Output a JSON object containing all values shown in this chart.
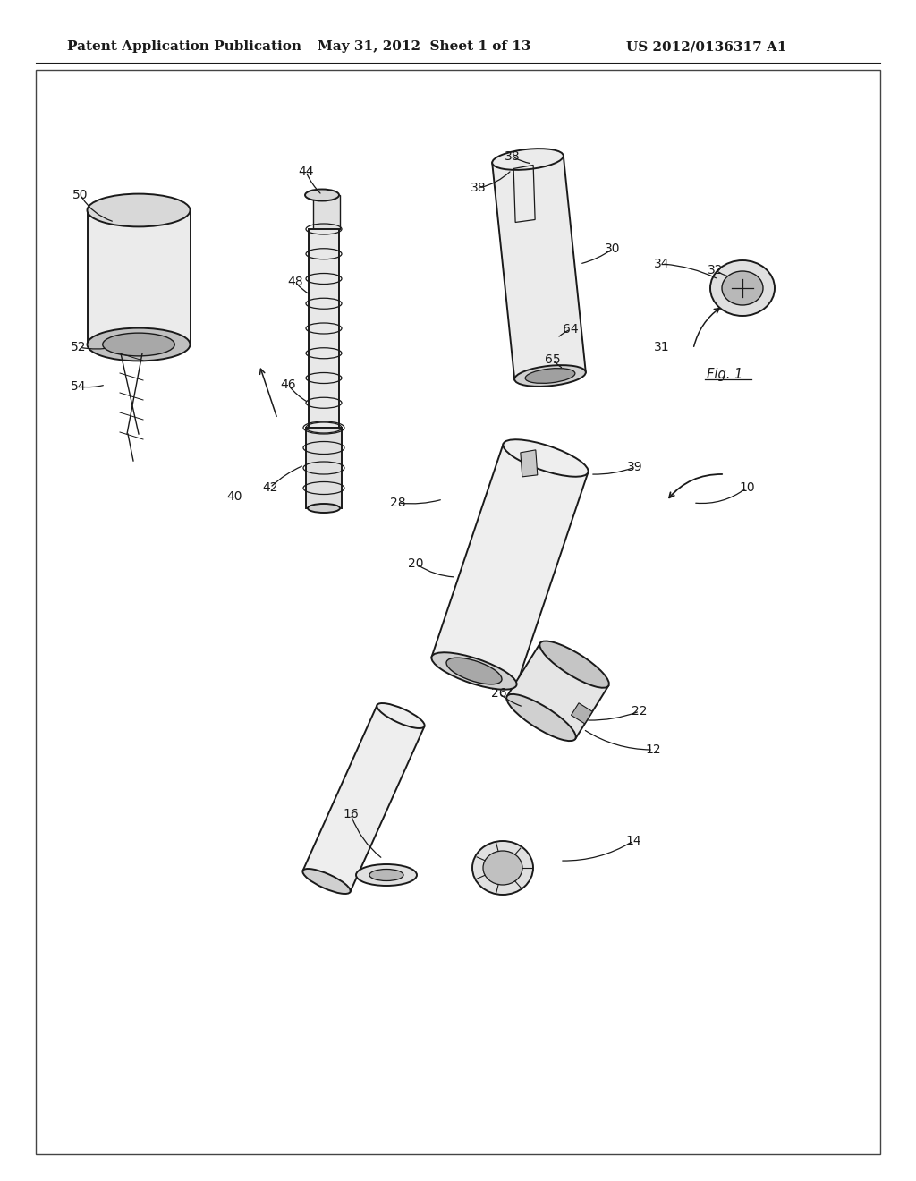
{
  "title": "Patent Application Publication",
  "date": "May 31, 2012  Sheet 1 of 13",
  "patent_num": "US 2012/0136317 A1",
  "fig_label": "Fig. 1",
  "background": "#ffffff",
  "line_color": "#1a1a1a",
  "header_fontsize": 11,
  "label_fontsize": 10
}
